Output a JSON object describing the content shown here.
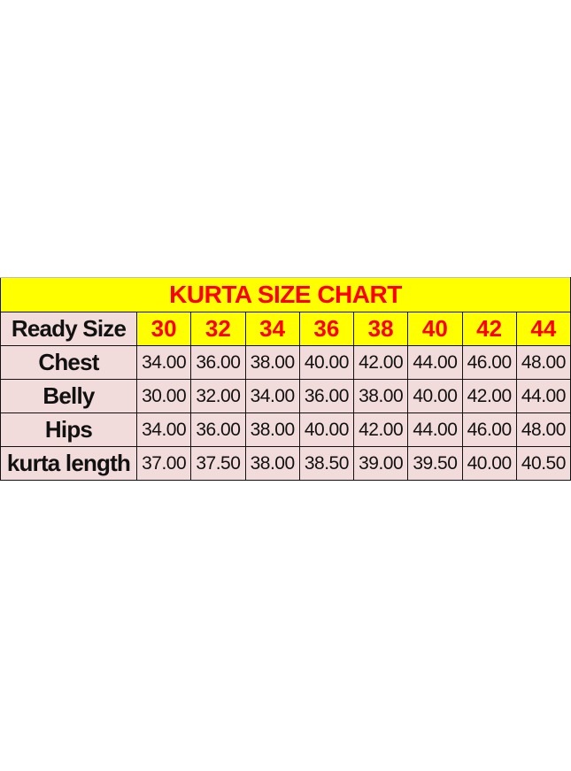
{
  "title": "KURTA SIZE CHART",
  "header": {
    "label": "Ready Size",
    "sizes": [
      "30",
      "32",
      "34",
      "36",
      "38",
      "40",
      "42",
      "44"
    ]
  },
  "rows": [
    {
      "label": "Chest",
      "values": [
        "34.00",
        "36.00",
        "38.00",
        "40.00",
        "42.00",
        "44.00",
        "46.00",
        "48.00"
      ]
    },
    {
      "label": "Belly",
      "values": [
        "30.00",
        "32.00",
        "34.00",
        "36.00",
        "38.00",
        "40.00",
        "42.00",
        "44.00"
      ]
    },
    {
      "label": "Hips",
      "values": [
        "34.00",
        "36.00",
        "38.00",
        "40.00",
        "42.00",
        "44.00",
        "46.00",
        "48.00"
      ]
    },
    {
      "label": "kurta length",
      "values": [
        "37.00",
        "37.50",
        "38.00",
        "38.50",
        "39.00",
        "39.50",
        "40.00",
        "40.50"
      ]
    }
  ],
  "colors": {
    "header_bg": "#ffff00",
    "header_text": "#ff0000",
    "cell_bg": "#f2dcdb"
  }
}
